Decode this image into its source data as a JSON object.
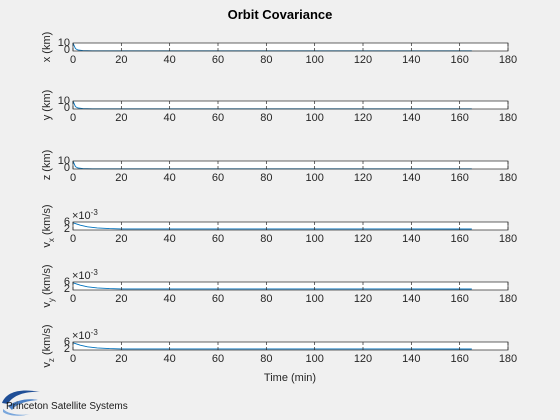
{
  "figure": {
    "title": "Orbit Covariance",
    "logo_text": "Princeton Satellite Systems"
  },
  "chart_data": {
    "type": "line",
    "xlabel": "Time (min)",
    "xlim": [
      0,
      180
    ],
    "xticks": [
      "0",
      "20",
      "40",
      "60",
      "80",
      "100",
      "120",
      "140",
      "160",
      "180"
    ],
    "grid": false,
    "line_color": "#0072bd",
    "panels": [
      {
        "ylabel": [
          "x (km)"
        ],
        "ylim": [
          0,
          10
        ],
        "yticks": [
          "0",
          "10"
        ],
        "exponent": "",
        "series": [
          {
            "x": [
              0,
              1,
              2,
              4,
              8,
              165
            ],
            "y": [
              10,
              3,
              1.2,
              0.5,
              0.2,
              0.2
            ]
          }
        ]
      },
      {
        "ylabel": [
          "y (km)"
        ],
        "ylim": [
          0,
          10
        ],
        "yticks": [
          "0",
          "10"
        ],
        "exponent": "",
        "series": [
          {
            "x": [
              0,
              1,
              2,
              4,
              8,
              165
            ],
            "y": [
              10,
              3,
              1.2,
              0.5,
              0.2,
              0.2
            ]
          }
        ]
      },
      {
        "ylabel": [
          "z (km)"
        ],
        "ylim": [
          0,
          10
        ],
        "yticks": [
          "0",
          "10"
        ],
        "exponent": "",
        "series": [
          {
            "x": [
              0,
              1,
              2,
              4,
              8,
              165
            ],
            "y": [
              10,
              3,
              1.2,
              0.5,
              0.2,
              0.2
            ]
          }
        ]
      },
      {
        "ylabel": [
          "v",
          "x",
          " (km/s)"
        ],
        "ylim": [
          0.0015,
          0.0065
        ],
        "yticks": [
          "2",
          "6"
        ],
        "exponent": "-3",
        "series": [
          {
            "x": [
              0,
              3,
              6,
              10,
              15,
              20,
              165
            ],
            "y": [
              0.006,
              0.0045,
              0.0035,
              0.0028,
              0.0024,
              0.0022,
              0.0021
            ]
          }
        ]
      },
      {
        "ylabel": [
          "v",
          "y",
          " (km/s)"
        ],
        "ylim": [
          0.0015,
          0.0065
        ],
        "yticks": [
          "2",
          "6"
        ],
        "exponent": "-3",
        "series": [
          {
            "x": [
              0,
              3,
              6,
              10,
              15,
              20,
              165
            ],
            "y": [
              0.006,
              0.0045,
              0.0035,
              0.0028,
              0.0024,
              0.0022,
              0.0021
            ]
          }
        ]
      },
      {
        "ylabel": [
          "v",
          "z",
          " (km/s)"
        ],
        "ylim": [
          0.0015,
          0.0065
        ],
        "yticks": [
          "2",
          "6"
        ],
        "exponent": "-3",
        "series": [
          {
            "x": [
              0,
              3,
              6,
              10,
              15,
              20,
              165
            ],
            "y": [
              0.006,
              0.0045,
              0.0035,
              0.0028,
              0.0024,
              0.0022,
              0.0021
            ]
          }
        ]
      }
    ]
  }
}
